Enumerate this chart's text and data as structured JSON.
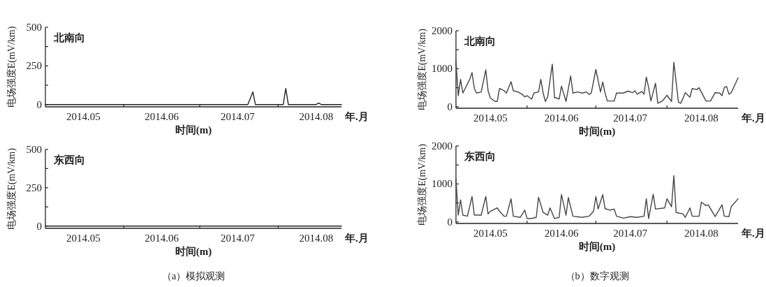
{
  "chart_data": [
    {
      "type": "line",
      "title": "北南向",
      "xlabel": "时间(m)",
      "ylabel": "电场强度E(mV/km)",
      "annotations": [
        "年.月"
      ],
      "xlim": [
        "2014-05-01",
        "2014-08-26"
      ],
      "ylim": [
        -15,
        500
      ],
      "yticks": [
        0,
        {
          "value": 125,
          "label": null
        },
        250,
        {
          "value": 375,
          "label": null
        },
        500
      ],
      "xticks": [
        {
          "value": "2014-06-01",
          "label": null
        },
        {
          "value": "2014-07-01",
          "label": null
        },
        {
          "value": "2014-08-01",
          "label": null
        },
        {
          "value": "2014-05-16",
          "label": "2014.05"
        },
        {
          "value": "2014-06-16",
          "label": "2014.06"
        },
        {
          "value": "2014-07-16",
          "label": "2014.07"
        },
        {
          "value": "2014-08-16",
          "label": "2014.08"
        }
      ],
      "series": [
        {
          "color": "#222222",
          "x": [
            "2014-05-01",
            "2014-07-20",
            "2014-07-22",
            "2014-07-23",
            "2014-08-03",
            "2014-08-04",
            "2014-08-05",
            "2014-08-16",
            "2014-08-17",
            "2014-08-18",
            "2014-08-26"
          ],
          "values": [
            0,
            0,
            82,
            0,
            0,
            104,
            0,
            0,
            9,
            0,
            0
          ]
        }
      ]
    },
    {
      "type": "line",
      "title": "北南向",
      "xlabel": "时间(m)",
      "ylabel": "电场强度E(mV/km)",
      "annotations": [
        "年.月"
      ],
      "xlim": [
        "2014-05-01",
        "2014-09-01"
      ],
      "ylim": [
        -40,
        2000
      ],
      "yticks": [
        0,
        {
          "value": 500,
          "label": null
        },
        1000,
        {
          "value": 1500,
          "label": null
        },
        2000
      ],
      "xticks": [
        {
          "value": "2014-06-01",
          "label": null
        },
        {
          "value": "2014-07-01",
          "label": null
        },
        {
          "value": "2014-08-01",
          "label": null
        },
        {
          "value": "2014-05-16",
          "label": "2014.05"
        },
        {
          "value": "2014-06-16",
          "label": "2014.06"
        },
        {
          "value": "2014-07-16",
          "label": "2014.07"
        },
        {
          "value": "2014-08-16",
          "label": "2014.08"
        }
      ],
      "series": [
        {
          "color": "#444444",
          "x": [
            "2014-05-01",
            "2014-05-02",
            "2014-05-03",
            "2014-05-04",
            "2014-05-05",
            "2014-05-07",
            "2014-05-08",
            "2014-05-09",
            "2014-05-10",
            "2014-05-12",
            "2014-05-14",
            "2014-05-15",
            "2014-05-16",
            "2014-05-18",
            "2014-05-19",
            "2014-05-20",
            "2014-05-22",
            "2014-05-23",
            "2014-05-25",
            "2014-05-26",
            "2014-05-28",
            "2014-05-30",
            "2014-05-31",
            "2014-06-01",
            "2014-06-03",
            "2014-06-04",
            "2014-06-06",
            "2014-06-07",
            "2014-06-08",
            "2014-06-09",
            "2014-06-10",
            "2014-06-12",
            "2014-06-13",
            "2014-06-14",
            "2014-06-15",
            "2014-06-16",
            "2014-06-18",
            "2014-06-20",
            "2014-06-21",
            "2014-06-23",
            "2014-06-25",
            "2014-06-27",
            "2014-06-28",
            "2014-06-29",
            "2014-07-01",
            "2014-07-03",
            "2014-07-04",
            "2014-07-05",
            "2014-07-06",
            "2014-07-09",
            "2014-07-10",
            "2014-07-13",
            "2014-07-15",
            "2014-07-17",
            "2014-07-18",
            "2014-07-19",
            "2014-07-21",
            "2014-07-22",
            "2014-07-23",
            "2014-07-24",
            "2014-07-25",
            "2014-07-27",
            "2014-07-28",
            "2014-07-30",
            "2014-08-01",
            "2014-08-03",
            "2014-08-04",
            "2014-08-06",
            "2014-08-07",
            "2014-08-09",
            "2014-08-11",
            "2014-08-12",
            "2014-08-14",
            "2014-08-15",
            "2014-08-18",
            "2014-08-20",
            "2014-08-22",
            "2014-08-24",
            "2014-08-25",
            "2014-08-26",
            "2014-08-27",
            "2014-08-28",
            "2014-08-29",
            "2014-09-01"
          ],
          "values": [
            1210,
            290,
            720,
            360,
            480,
            720,
            900,
            480,
            360,
            390,
            970,
            420,
            230,
            140,
            140,
            480,
            420,
            360,
            660,
            420,
            390,
            320,
            260,
            290,
            200,
            360,
            390,
            720,
            360,
            140,
            260,
            1120,
            230,
            230,
            200,
            540,
            140,
            810,
            360,
            390,
            360,
            390,
            320,
            360,
            980,
            390,
            650,
            360,
            150,
            150,
            360,
            360,
            410,
            370,
            420,
            330,
            400,
            330,
            780,
            510,
            150,
            620,
            90,
            150,
            300,
            140,
            1170,
            120,
            90,
            370,
            250,
            480,
            450,
            500,
            150,
            150,
            370,
            360,
            290,
            510,
            530,
            330,
            370,
            760
          ]
        }
      ]
    },
    {
      "type": "line",
      "title": "东西向",
      "xlabel": "时间(m)",
      "ylabel": "电场强度E(mV/km)",
      "annotations": [
        "年.月",
        "（a）模拟观测"
      ],
      "xlim": [
        "2014-05-01",
        "2014-08-26"
      ],
      "ylim": [
        -15,
        500
      ],
      "yticks": [
        0,
        {
          "value": 125,
          "label": null
        },
        250,
        {
          "value": 375,
          "label": null
        },
        500
      ],
      "xticks": [
        {
          "value": "2014-06-01",
          "label": null
        },
        {
          "value": "2014-07-01",
          "label": null
        },
        {
          "value": "2014-08-01",
          "label": null
        },
        {
          "value": "2014-05-16",
          "label": "2014.05"
        },
        {
          "value": "2014-06-16",
          "label": "2014.06"
        },
        {
          "value": "2014-07-16",
          "label": "2014.07"
        },
        {
          "value": "2014-08-16",
          "label": "2014.08"
        }
      ],
      "series": [
        {
          "color": "#222222",
          "x": [
            "2014-05-01",
            "2014-08-26"
          ],
          "values": [
            0,
            0
          ]
        }
      ]
    },
    {
      "type": "line",
      "title": "东西向",
      "xlabel": "时间(m)",
      "ylabel": "电场强度E(mV/km)",
      "annotations": [
        "年.月",
        "（b）数字观测"
      ],
      "xlim": [
        "2014-05-01",
        "2014-09-01"
      ],
      "ylim": [
        -40,
        2000
      ],
      "yticks": [
        0,
        {
          "value": 500,
          "label": null
        },
        1000,
        {
          "value": 1500,
          "label": null
        },
        2000
      ],
      "xticks": [
        {
          "value": "2014-06-01",
          "label": null
        },
        {
          "value": "2014-07-01",
          "label": null
        },
        {
          "value": "2014-08-01",
          "label": null
        },
        {
          "value": "2014-05-16",
          "label": "2014.05"
        },
        {
          "value": "2014-06-16",
          "label": "2014.06"
        },
        {
          "value": "2014-07-16",
          "label": "2014.07"
        },
        {
          "value": "2014-08-16",
          "label": "2014.08"
        }
      ],
      "series": [
        {
          "color": "#444444",
          "x": [
            "2014-05-01",
            "2014-05-02",
            "2014-05-03",
            "2014-05-04",
            "2014-05-06",
            "2014-05-08",
            "2014-05-09",
            "2014-05-12",
            "2014-05-14",
            "2014-05-15",
            "2014-05-16",
            "2014-05-19",
            "2014-05-20",
            "2014-05-22",
            "2014-05-23",
            "2014-05-25",
            "2014-05-26",
            "2014-05-29",
            "2014-05-31",
            "2014-06-01",
            "2014-06-03",
            "2014-06-05",
            "2014-06-06",
            "2014-06-08",
            "2014-06-10",
            "2014-06-11",
            "2014-06-13",
            "2014-06-15",
            "2014-06-16",
            "2014-06-18",
            "2014-06-19",
            "2014-06-21",
            "2014-06-25",
            "2014-06-28",
            "2014-06-30",
            "2014-07-01",
            "2014-07-02",
            "2014-07-04",
            "2014-07-05",
            "2014-07-07",
            "2014-07-09",
            "2014-07-10",
            "2014-07-13",
            "2014-07-16",
            "2014-07-19",
            "2014-07-22",
            "2014-07-23",
            "2014-07-24",
            "2014-07-26",
            "2014-07-27",
            "2014-07-31",
            "2014-08-01",
            "2014-08-03",
            "2014-08-04",
            "2014-08-05",
            "2014-08-08",
            "2014-08-09",
            "2014-08-11",
            "2014-08-12",
            "2014-08-15",
            "2014-08-16",
            "2014-08-18",
            "2014-08-19",
            "2014-08-22",
            "2014-08-25",
            "2014-08-26",
            "2014-08-28",
            "2014-08-29",
            "2014-09-01"
          ],
          "values": [
            1130,
            180,
            580,
            180,
            150,
            670,
            180,
            180,
            670,
            210,
            280,
            370,
            280,
            150,
            150,
            610,
            150,
            120,
            310,
            90,
            90,
            120,
            650,
            250,
            180,
            370,
            90,
            120,
            720,
            180,
            640,
            150,
            120,
            150,
            280,
            670,
            340,
            720,
            350,
            310,
            340,
            150,
            100,
            140,
            120,
            150,
            610,
            90,
            730,
            340,
            370,
            610,
            400,
            1220,
            250,
            210,
            120,
            370,
            150,
            150,
            520,
            430,
            450,
            140,
            450,
            150,
            140,
            400,
            610
          ]
        }
      ]
    }
  ]
}
